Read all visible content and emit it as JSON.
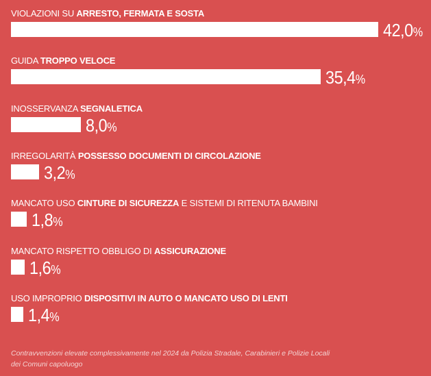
{
  "chart_data": {
    "type": "bar",
    "orientation": "horizontal",
    "categories": [
      {
        "pre": "VIOLAZIONI SU ",
        "bold": "ARRESTO, FERMATA E SOSTA",
        "post": ""
      },
      {
        "pre": "GUIDA ",
        "bold": "TROPPO VELOCE",
        "post": ""
      },
      {
        "pre": "INOSSERVANZA ",
        "bold": "SEGNALETICA",
        "post": ""
      },
      {
        "pre": "IRREGOLARITÀ ",
        "bold": "POSSESSO DOCUMENTI DI CIRCOLAZIONE",
        "post": ""
      },
      {
        "pre": "MANCATO USO ",
        "bold": "CINTURE DI SICUREZZA",
        "post": " E SISTEMI DI RITENUTA BAMBINI"
      },
      {
        "pre": "MANCATO RISPETTO OBBLIGO DI ",
        "bold": "ASSICURAZIONE",
        "post": ""
      },
      {
        "pre": "USO IMPROPRIO ",
        "bold": "DISPOSITIVI IN AUTO O MANCATO USO DI LENTI",
        "post": ""
      }
    ],
    "values": [
      42.0,
      35.4,
      8.0,
      3.2,
      1.8,
      1.6,
      1.4
    ],
    "value_labels": [
      "42,0",
      "35,4",
      "8,0",
      "3,2",
      "1,8",
      "1,6",
      "1,4"
    ],
    "unit": "%",
    "xlim": [
      0,
      42.0
    ],
    "colors": {
      "background": "#d95050",
      "bar": "#ffffff",
      "text": "#ffffff"
    }
  },
  "footnote_line1": "Contravvenzioni elevate complessivamente nel 2024 da Polizia Stradale, Carabinieri e Polizie Locali",
  "footnote_line2": "dei Comuni capoluogo"
}
